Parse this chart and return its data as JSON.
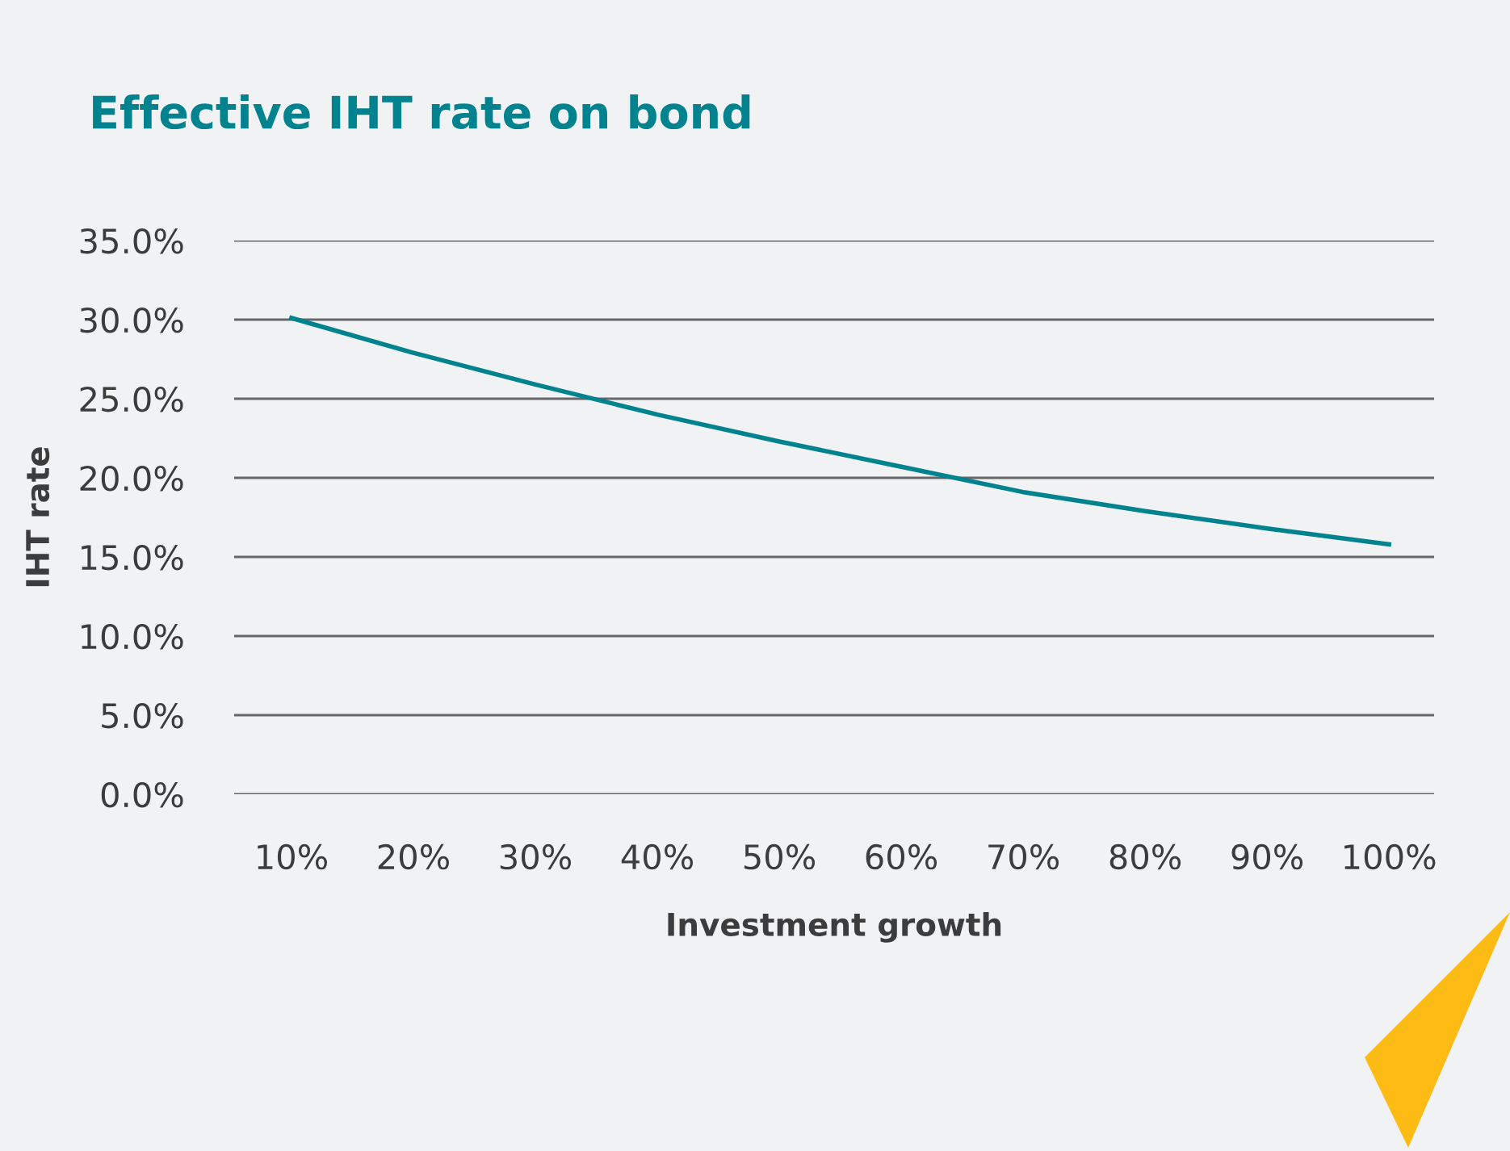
{
  "chart_data": {
    "type": "line",
    "title": "Effective IHT rate on bond",
    "xlabel": "Investment growth",
    "ylabel": "IHT rate",
    "categories": [
      "10%",
      "20%",
      "30%",
      "40%",
      "50%",
      "60%",
      "70%",
      "80%",
      "90%",
      "100%"
    ],
    "series": [
      {
        "color": "#00838f",
        "values": [
          30.1,
          27.9,
          25.9,
          24.0,
          22.3,
          20.7,
          19.1,
          17.9,
          16.8,
          15.8
        ]
      }
    ],
    "ylim": [
      0,
      35
    ],
    "yticks": [
      {
        "value": 0,
        "label": "0.0%"
      },
      {
        "value": 5,
        "label": "5.0%"
      },
      {
        "value": 10,
        "label": "10.0%"
      },
      {
        "value": 15,
        "label": "15.0%"
      },
      {
        "value": 20,
        "label": "20.0%"
      },
      {
        "value": 25,
        "label": "25.0%"
      },
      {
        "value": 30,
        "label": "30.0%"
      },
      {
        "value": 35,
        "label": "35.0%"
      }
    ],
    "grid": "y",
    "marker": "none",
    "line_style": "solid"
  }
}
